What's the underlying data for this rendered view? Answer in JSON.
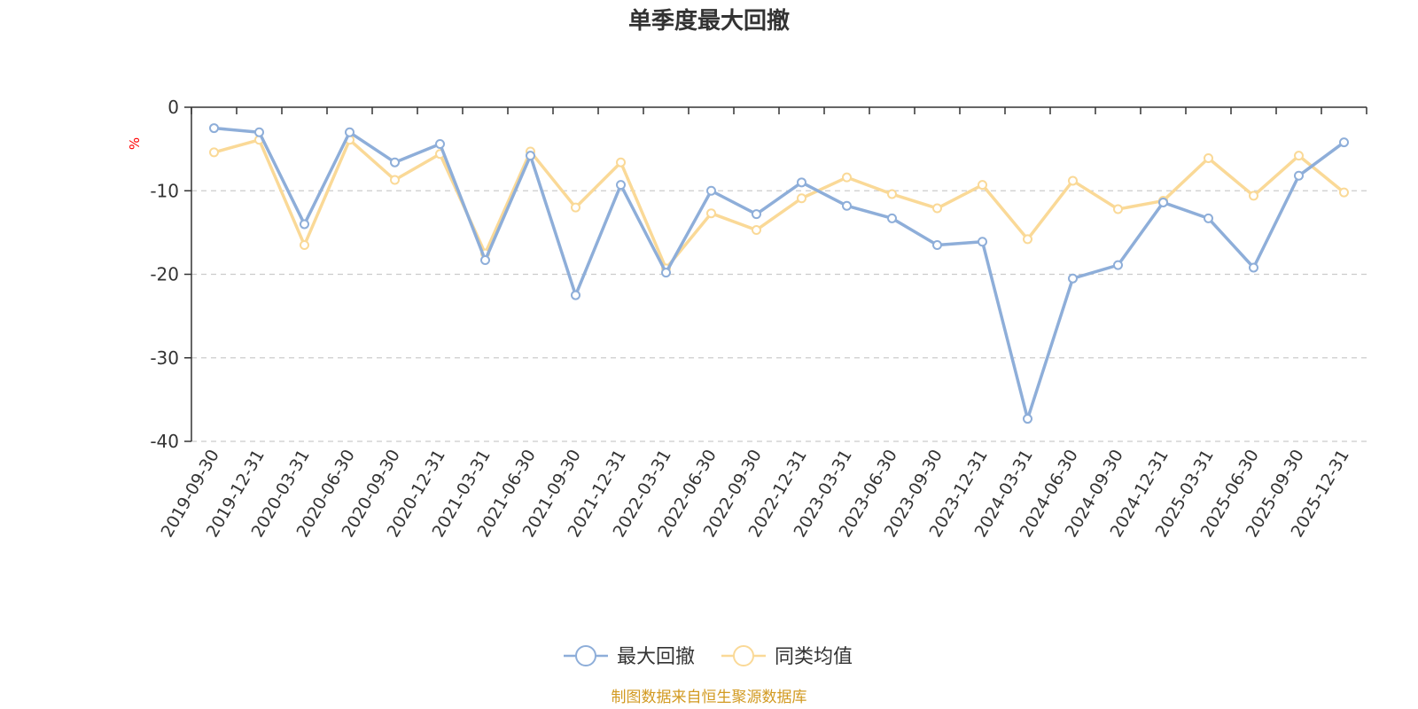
{
  "chart_data": {
    "type": "line",
    "title": "单季度最大回撤",
    "ylabel": "%",
    "ylim": [
      -40,
      0
    ],
    "yticks": [
      0,
      -10,
      -20,
      -30,
      -40
    ],
    "grid": true,
    "legend_position": "bottom-center",
    "categories": [
      "2019-09-30",
      "2019-12-31",
      "2020-03-31",
      "2020-06-30",
      "2020-09-30",
      "2020-12-31",
      "2021-03-31",
      "2021-06-30",
      "2021-09-30",
      "2021-12-31",
      "2022-03-31",
      "2022-06-30",
      "2022-09-30",
      "2022-12-31",
      "2023-03-31",
      "2023-06-30",
      "2023-09-30",
      "2023-12-31",
      "2024-03-31",
      "2024-06-30",
      "2024-09-30",
      "2024-12-31",
      "2025-03-31",
      "2025-06-30",
      "2025-09-30",
      "2025-12-31"
    ],
    "series": [
      {
        "name": "最大回撤",
        "color": "#8eaed9",
        "values": [
          -2.5,
          -3.0,
          -14.0,
          -3.0,
          -6.6,
          -4.4,
          -18.3,
          -5.8,
          -22.5,
          -9.3,
          -19.8,
          -10.0,
          -12.8,
          -9.0,
          -11.8,
          -13.3,
          -16.5,
          -16.1,
          -37.3,
          -20.5,
          -18.9,
          -11.4,
          -13.3,
          -19.2,
          -8.2,
          -4.2
        ]
      },
      {
        "name": "同类均值",
        "color": "#fad997",
        "values": [
          -5.4,
          -3.9,
          -16.5,
          -3.9,
          -8.7,
          -5.6,
          -17.5,
          -5.3,
          -12.0,
          -6.6,
          -19.3,
          -12.7,
          -14.7,
          -10.9,
          -8.4,
          -10.4,
          -12.1,
          -9.3,
          -15.8,
          -8.8,
          -12.2,
          -11.2,
          -6.1,
          -10.6,
          -5.8,
          -10.2
        ]
      }
    ]
  },
  "colors": {
    "axis": "#333333",
    "grid": "#cccccc",
    "unit": "#ff0000",
    "source": "#d29a21"
  },
  "source_note": "制图数据来自恒生聚源数据库"
}
